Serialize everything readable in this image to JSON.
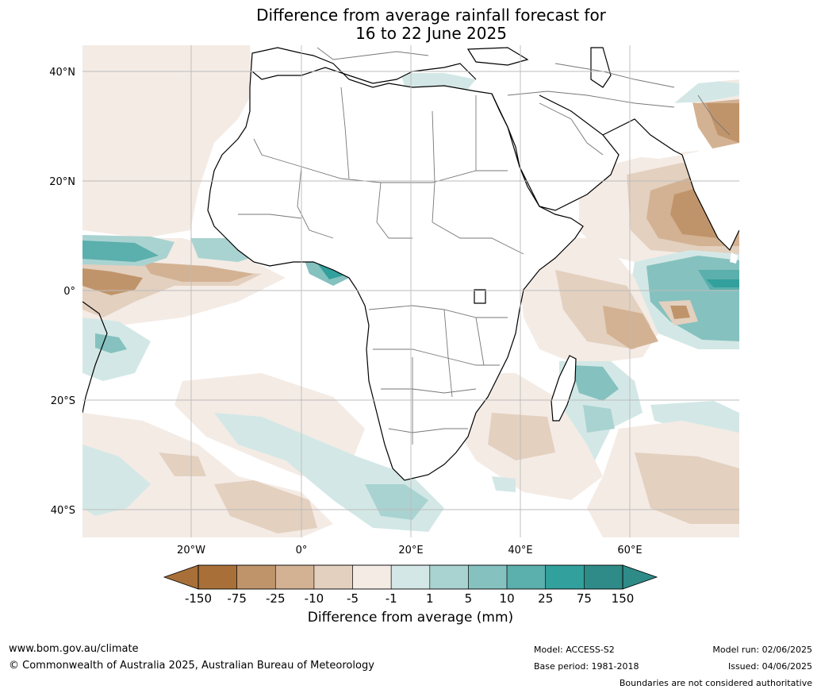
{
  "title": {
    "line1": "Difference from average rainfall forecast for",
    "line2": "16 to 22 June 2025"
  },
  "map": {
    "lat_labels": [
      "40°N",
      "20°N",
      "0°",
      "20°S",
      "40°S"
    ],
    "lon_labels": [
      "20°W",
      "0°",
      "20°E",
      "40°E",
      "60°E"
    ],
    "land_color": "#ffffff",
    "coast_color": "#000000",
    "border_color": "#777777",
    "grid_color": "#bbbbbb"
  },
  "colorbar": {
    "title": "Difference from average (mm)",
    "ticks": [
      "-150",
      "-75",
      "-25",
      "-10",
      "-5",
      "-1",
      "1",
      "5",
      "10",
      "25",
      "75",
      "150"
    ],
    "colors": [
      "#a87038",
      "#c0946a",
      "#d3b293",
      "#e3d0bf",
      "#f4ebe5",
      "#ffffff",
      "#d3e8e6",
      "#a9d3d1",
      "#85c1bf",
      "#5bafac",
      "#32a09c",
      "#2e8b88"
    ],
    "under_color": "#a87038",
    "over_color": "#2e8b88"
  },
  "footer": {
    "website": "www.bom.gov.au/climate",
    "copyright": "© Commonwealth of Australia 2025, Australian Bureau of Meteorology",
    "model": "Model: ACCESS-S2",
    "base_period": "Base period: 1981-2018",
    "model_run": "Model run: 02/06/2025",
    "issued": "Issued: 04/06/2025",
    "disclaimer": "Boundaries are not considered authoritative"
  }
}
